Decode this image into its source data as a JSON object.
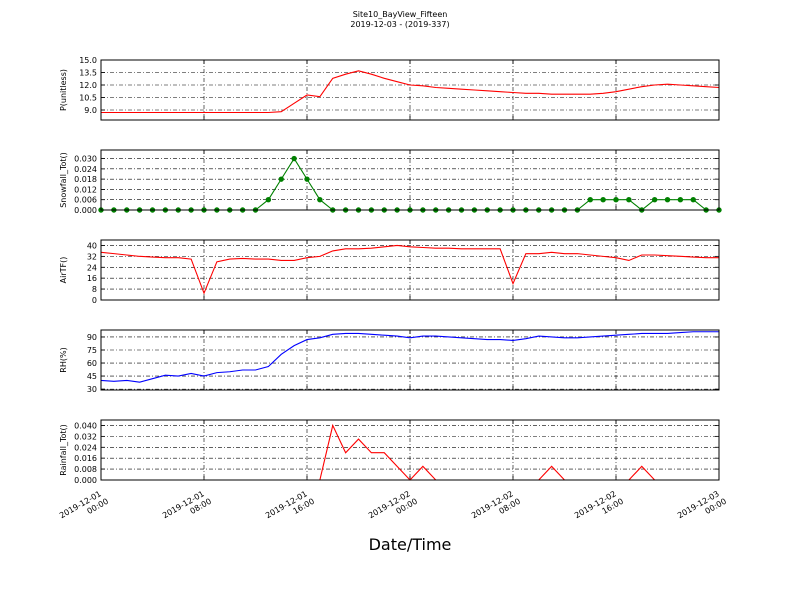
{
  "title": "Site10_BayView_Fifteen",
  "subtitle": "2019-12-03 - (2019-337)",
  "xlabel": "Date/Time",
  "chart_data": [
    {
      "type": "line",
      "ylabel": "P(unitless)",
      "x": [
        "2019-12-01 00:00",
        "2019-12-01 01:00",
        "2019-12-01 02:00",
        "2019-12-01 03:00",
        "2019-12-01 04:00",
        "2019-12-01 05:00",
        "2019-12-01 06:00",
        "2019-12-01 07:00",
        "2019-12-01 08:00",
        "2019-12-01 09:00",
        "2019-12-01 10:00",
        "2019-12-01 11:00",
        "2019-12-01 12:00",
        "2019-12-01 13:00",
        "2019-12-01 14:00",
        "2019-12-01 15:00",
        "2019-12-01 16:00",
        "2019-12-01 17:00",
        "2019-12-01 18:00",
        "2019-12-01 19:00",
        "2019-12-01 20:00",
        "2019-12-01 21:00",
        "2019-12-01 22:00",
        "2019-12-01 23:00",
        "2019-12-02 00:00",
        "2019-12-02 01:00",
        "2019-12-02 02:00",
        "2019-12-02 03:00",
        "2019-12-02 04:00",
        "2019-12-02 05:00",
        "2019-12-02 06:00",
        "2019-12-02 07:00",
        "2019-12-02 08:00",
        "2019-12-02 09:00",
        "2019-12-02 10:00",
        "2019-12-02 11:00",
        "2019-12-02 12:00",
        "2019-12-02 13:00",
        "2019-12-02 14:00",
        "2019-12-02 15:00",
        "2019-12-02 16:00",
        "2019-12-02 17:00",
        "2019-12-02 18:00",
        "2019-12-02 19:00",
        "2019-12-02 20:00",
        "2019-12-02 21:00",
        "2019-12-02 22:00",
        "2019-12-02 23:00",
        "2019-12-03 00:00"
      ],
      "series": [
        {
          "color": "#ff0000",
          "values": [
            8.7,
            8.7,
            8.7,
            8.7,
            8.7,
            8.7,
            8.7,
            8.7,
            8.7,
            8.7,
            8.7,
            8.7,
            8.7,
            8.7,
            8.8,
            9.8,
            10.8,
            10.6,
            12.8,
            13.3,
            13.7,
            13.3,
            12.8,
            12.4,
            12.0,
            11.9,
            11.7,
            11.6,
            11.5,
            11.4,
            11.3,
            11.2,
            11.1,
            11.0,
            11.0,
            10.9,
            10.9,
            10.9,
            10.9,
            11.0,
            11.2,
            11.5,
            11.8,
            12.0,
            12.1,
            12.0,
            11.9,
            11.8,
            11.7
          ]
        }
      ],
      "xlim": [
        "2019-12-01 00:00",
        "2019-12-03 00:00"
      ],
      "xticks": [
        "2019-12-01 00:00",
        "2019-12-01 08:00",
        "2019-12-01 16:00",
        "2019-12-02 00:00",
        "2019-12-02 08:00",
        "2019-12-02 16:00",
        "2019-12-03 00:00"
      ],
      "ylim": [
        7.8,
        15.0
      ],
      "yticks": [
        {
          "value": 9,
          "label": "9.0"
        },
        10.5,
        {
          "value": 12,
          "label": "12.0"
        },
        13.5,
        {
          "value": 15,
          "label": "15.0"
        }
      ],
      "grid": true
    },
    {
      "type": "line",
      "ylabel": "Snowfall_Tot()",
      "marker": true,
      "x": [
        "2019-12-01 00:00",
        "2019-12-01 01:00",
        "2019-12-01 02:00",
        "2019-12-01 03:00",
        "2019-12-01 04:00",
        "2019-12-01 05:00",
        "2019-12-01 06:00",
        "2019-12-01 07:00",
        "2019-12-01 08:00",
        "2019-12-01 09:00",
        "2019-12-01 10:00",
        "2019-12-01 11:00",
        "2019-12-01 12:00",
        "2019-12-01 13:00",
        "2019-12-01 14:00",
        "2019-12-01 15:00",
        "2019-12-01 16:00",
        "2019-12-01 17:00",
        "2019-12-01 18:00",
        "2019-12-01 19:00",
        "2019-12-01 20:00",
        "2019-12-01 21:00",
        "2019-12-01 22:00",
        "2019-12-01 23:00",
        "2019-12-02 00:00",
        "2019-12-02 01:00",
        "2019-12-02 02:00",
        "2019-12-02 03:00",
        "2019-12-02 04:00",
        "2019-12-02 05:00",
        "2019-12-02 06:00",
        "2019-12-02 07:00",
        "2019-12-02 08:00",
        "2019-12-02 09:00",
        "2019-12-02 10:00",
        "2019-12-02 11:00",
        "2019-12-02 12:00",
        "2019-12-02 13:00",
        "2019-12-02 14:00",
        "2019-12-02 15:00",
        "2019-12-02 16:00",
        "2019-12-02 17:00",
        "2019-12-02 18:00",
        "2019-12-02 19:00",
        "2019-12-02 20:00",
        "2019-12-02 21:00",
        "2019-12-02 22:00",
        "2019-12-02 23:00",
        "2019-12-03 00:00"
      ],
      "series": [
        {
          "color": "#008000",
          "values": [
            0,
            0,
            0,
            0,
            0,
            0,
            0,
            0,
            0,
            0,
            0,
            0,
            0,
            0.006,
            0.018,
            0.03,
            0.018,
            0.006,
            0,
            0,
            0,
            0,
            0,
            0,
            0,
            0,
            0,
            0,
            0,
            0,
            0,
            0,
            0,
            0,
            0,
            0,
            0,
            0,
            0.006,
            0.006,
            0.006,
            0.006,
            0,
            0.006,
            0.006,
            0.006,
            0.006,
            0,
            0
          ]
        }
      ],
      "xlim": [
        "2019-12-01 00:00",
        "2019-12-03 00:00"
      ],
      "xticks": [
        "2019-12-01 00:00",
        "2019-12-01 08:00",
        "2019-12-01 16:00",
        "2019-12-02 00:00",
        "2019-12-02 08:00",
        "2019-12-02 16:00",
        "2019-12-03 00:00"
      ],
      "ylim": [
        0,
        0.035
      ],
      "yticks": [
        {
          "value": 0,
          "label": "0.000"
        },
        0.006,
        0.012,
        0.018,
        0.024,
        {
          "value": 0.03,
          "label": "0.030"
        }
      ],
      "grid": true
    },
    {
      "type": "line",
      "ylabel": "AirTF()",
      "x": [
        "2019-12-01 00:00",
        "2019-12-01 01:00",
        "2019-12-01 02:00",
        "2019-12-01 03:00",
        "2019-12-01 04:00",
        "2019-12-01 05:00",
        "2019-12-01 06:00",
        "2019-12-01 07:00",
        "2019-12-01 08:00",
        "2019-12-01 09:00",
        "2019-12-01 10:00",
        "2019-12-01 11:00",
        "2019-12-01 12:00",
        "2019-12-01 13:00",
        "2019-12-01 14:00",
        "2019-12-01 15:00",
        "2019-12-01 16:00",
        "2019-12-01 17:00",
        "2019-12-01 18:00",
        "2019-12-01 19:00",
        "2019-12-01 20:00",
        "2019-12-01 21:00",
        "2019-12-01 22:00",
        "2019-12-01 23:00",
        "2019-12-02 00:00",
        "2019-12-02 01:00",
        "2019-12-02 02:00",
        "2019-12-02 03:00",
        "2019-12-02 04:00",
        "2019-12-02 05:00",
        "2019-12-02 06:00",
        "2019-12-02 07:00",
        "2019-12-02 08:00",
        "2019-12-02 09:00",
        "2019-12-02 10:00",
        "2019-12-02 11:00",
        "2019-12-02 12:00",
        "2019-12-02 13:00",
        "2019-12-02 14:00",
        "2019-12-02 15:00",
        "2019-12-02 16:00",
        "2019-12-02 17:00",
        "2019-12-02 18:00",
        "2019-12-02 19:00",
        "2019-12-02 20:00",
        "2019-12-02 21:00",
        "2019-12-02 22:00",
        "2019-12-02 23:00",
        "2019-12-03 00:00"
      ],
      "series": [
        {
          "color": "#ff0000",
          "values": [
            35,
            34,
            33,
            32,
            31.5,
            31,
            31,
            30,
            5,
            28,
            30,
            30.5,
            30,
            30,
            29,
            29,
            31,
            32,
            36,
            37.5,
            37.5,
            38,
            39,
            40,
            39,
            38.5,
            38,
            38,
            37.5,
            37.5,
            37.5,
            37.5,
            12,
            34,
            34,
            35,
            34,
            34,
            33,
            32,
            31,
            29,
            33,
            33,
            32.5,
            32,
            31.5,
            31,
            31
          ]
        }
      ],
      "xlim": [
        "2019-12-01 00:00",
        "2019-12-03 00:00"
      ],
      "xticks": [
        "2019-12-01 00:00",
        "2019-12-01 08:00",
        "2019-12-01 16:00",
        "2019-12-02 00:00",
        "2019-12-02 08:00",
        "2019-12-02 16:00",
        "2019-12-03 00:00"
      ],
      "ylim": [
        0,
        44
      ],
      "yticks": [
        0,
        8,
        16,
        24,
        32,
        40
      ],
      "grid": true
    },
    {
      "type": "line",
      "ylabel": "RH(%)",
      "x": [
        "2019-12-01 00:00",
        "2019-12-01 01:00",
        "2019-12-01 02:00",
        "2019-12-01 03:00",
        "2019-12-01 04:00",
        "2019-12-01 05:00",
        "2019-12-01 06:00",
        "2019-12-01 07:00",
        "2019-12-01 08:00",
        "2019-12-01 09:00",
        "2019-12-01 10:00",
        "2019-12-01 11:00",
        "2019-12-01 12:00",
        "2019-12-01 13:00",
        "2019-12-01 14:00",
        "2019-12-01 15:00",
        "2019-12-01 16:00",
        "2019-12-01 17:00",
        "2019-12-01 18:00",
        "2019-12-01 19:00",
        "2019-12-01 20:00",
        "2019-12-01 21:00",
        "2019-12-01 22:00",
        "2019-12-01 23:00",
        "2019-12-02 00:00",
        "2019-12-02 01:00",
        "2019-12-02 02:00",
        "2019-12-02 03:00",
        "2019-12-02 04:00",
        "2019-12-02 05:00",
        "2019-12-02 06:00",
        "2019-12-02 07:00",
        "2019-12-02 08:00",
        "2019-12-02 09:00",
        "2019-12-02 10:00",
        "2019-12-02 11:00",
        "2019-12-02 12:00",
        "2019-12-02 13:00",
        "2019-12-02 14:00",
        "2019-12-02 15:00",
        "2019-12-02 16:00",
        "2019-12-02 17:00",
        "2019-12-02 18:00",
        "2019-12-02 19:00",
        "2019-12-02 20:00",
        "2019-12-02 21:00",
        "2019-12-02 22:00",
        "2019-12-02 23:00",
        "2019-12-03 00:00"
      ],
      "series": [
        {
          "color": "#0000ff",
          "values": [
            40,
            39,
            40,
            38,
            42,
            46,
            45,
            48,
            45,
            49,
            50,
            52,
            52,
            56,
            70,
            80,
            87,
            89,
            93,
            94,
            94,
            93,
            92,
            91,
            89,
            91,
            91,
            90,
            89,
            88,
            87,
            87,
            86,
            88,
            91,
            90,
            89,
            89,
            90,
            91,
            92,
            93,
            94,
            94,
            94,
            95,
            96,
            96,
            96
          ]
        }
      ],
      "xlim": [
        "2019-12-01 00:00",
        "2019-12-03 00:00"
      ],
      "xticks": [
        "2019-12-01 00:00",
        "2019-12-01 08:00",
        "2019-12-01 16:00",
        "2019-12-02 00:00",
        "2019-12-02 08:00",
        "2019-12-02 16:00",
        "2019-12-03 00:00"
      ],
      "ylim": [
        29,
        98
      ],
      "yticks": [
        30,
        45,
        60,
        75,
        90
      ],
      "grid": true
    },
    {
      "type": "line",
      "ylabel": "Rainfall_Tot()",
      "x": [
        "2019-12-01 00:00",
        "2019-12-01 01:00",
        "2019-12-01 02:00",
        "2019-12-01 03:00",
        "2019-12-01 04:00",
        "2019-12-01 05:00",
        "2019-12-01 06:00",
        "2019-12-01 07:00",
        "2019-12-01 08:00",
        "2019-12-01 09:00",
        "2019-12-01 10:00",
        "2019-12-01 11:00",
        "2019-12-01 12:00",
        "2019-12-01 13:00",
        "2019-12-01 14:00",
        "2019-12-01 15:00",
        "2019-12-01 16:00",
        "2019-12-01 17:00",
        "2019-12-01 18:00",
        "2019-12-01 19:00",
        "2019-12-01 20:00",
        "2019-12-01 21:00",
        "2019-12-01 22:00",
        "2019-12-01 23:00",
        "2019-12-02 00:00",
        "2019-12-02 01:00",
        "2019-12-02 02:00",
        "2019-12-02 03:00",
        "2019-12-02 04:00",
        "2019-12-02 05:00",
        "2019-12-02 06:00",
        "2019-12-02 07:00",
        "2019-12-02 08:00",
        "2019-12-02 09:00",
        "2019-12-02 10:00",
        "2019-12-02 11:00",
        "2019-12-02 12:00",
        "2019-12-02 13:00",
        "2019-12-02 14:00",
        "2019-12-02 15:00",
        "2019-12-02 16:00",
        "2019-12-02 17:00",
        "2019-12-02 18:00",
        "2019-12-02 19:00",
        "2019-12-02 20:00",
        "2019-12-02 21:00",
        "2019-12-02 22:00",
        "2019-12-02 23:00",
        "2019-12-03 00:00"
      ],
      "series": [
        {
          "color": "#ff0000",
          "values": [
            0,
            0,
            0,
            0,
            0,
            0,
            0,
            0,
            0,
            0,
            0,
            0,
            0,
            0,
            0,
            0,
            0,
            0,
            0.04,
            0.02,
            0.03,
            0.02,
            0.02,
            0.01,
            0,
            0.01,
            0,
            0,
            0,
            0,
            0,
            0,
            0,
            0,
            0,
            0.01,
            0,
            0,
            0,
            0,
            0,
            0,
            0.01,
            0,
            0,
            0,
            0,
            0,
            0
          ]
        }
      ],
      "xlim": [
        "2019-12-01 00:00",
        "2019-12-03 00:00"
      ],
      "xticks": [
        "2019-12-01 00:00",
        "2019-12-01 08:00",
        "2019-12-01 16:00",
        "2019-12-02 00:00",
        "2019-12-02 08:00",
        "2019-12-02 16:00",
        "2019-12-03 00:00"
      ],
      "ylim": [
        0,
        0.044
      ],
      "yticks": [
        {
          "value": 0,
          "label": "0.000"
        },
        0.008,
        0.016,
        0.024,
        0.032,
        {
          "value": 0.04,
          "label": "0.040"
        }
      ],
      "grid": true
    }
  ]
}
